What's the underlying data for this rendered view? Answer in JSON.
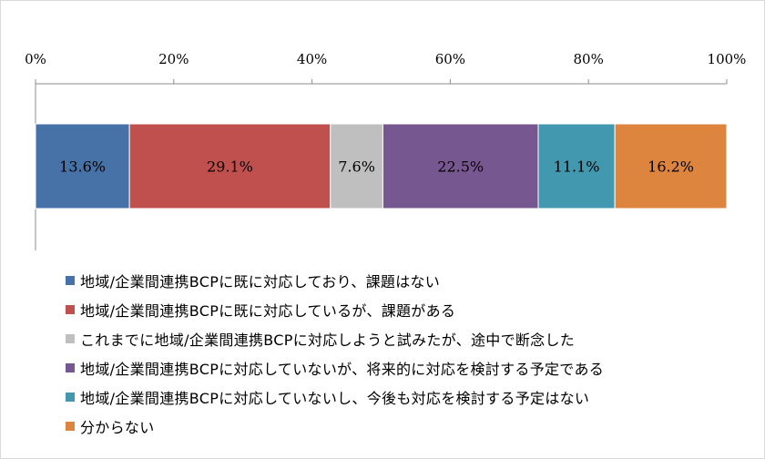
{
  "chart_data": {
    "type": "bar",
    "orientation": "horizontal-stacked-100",
    "xlim": [
      0,
      100
    ],
    "ticks": [
      "0%",
      "20%",
      "40%",
      "60%",
      "80%",
      "100%"
    ],
    "tick_values": [
      0,
      20,
      40,
      60,
      80,
      100
    ],
    "grid": false,
    "legend_position": "bottom",
    "series": [
      {
        "name": "地域/企業間連携BCPに既に対応しており、課題はない",
        "value": 13.6,
        "label": "13.6%",
        "color": "#4672a8"
      },
      {
        "name": "地域/企業間連携BCPに既に対応しているが、課題がある",
        "value": 29.1,
        "label": "29.1%",
        "color": "#c0504d"
      },
      {
        "name": "これまでに地域/企業間連携BCPに対応しようと試みたが、途中で断念した",
        "value": 7.6,
        "label": "7.6%",
        "color": "#bfbfbf"
      },
      {
        "name": "地域/企業間連携BCPに対応していないが、将来的に対応を検討する予定である",
        "value": 22.5,
        "label": "22.5%",
        "color": "#77578f"
      },
      {
        "name": "地域/企業間連携BCPに対応していないし、今後も対応を検討する予定はない",
        "value": 11.1,
        "label": "11.1%",
        "color": "#4198af"
      },
      {
        "name": "分からない",
        "value": 16.2,
        "label": "16.2%",
        "color": "#dd843e"
      }
    ]
  }
}
